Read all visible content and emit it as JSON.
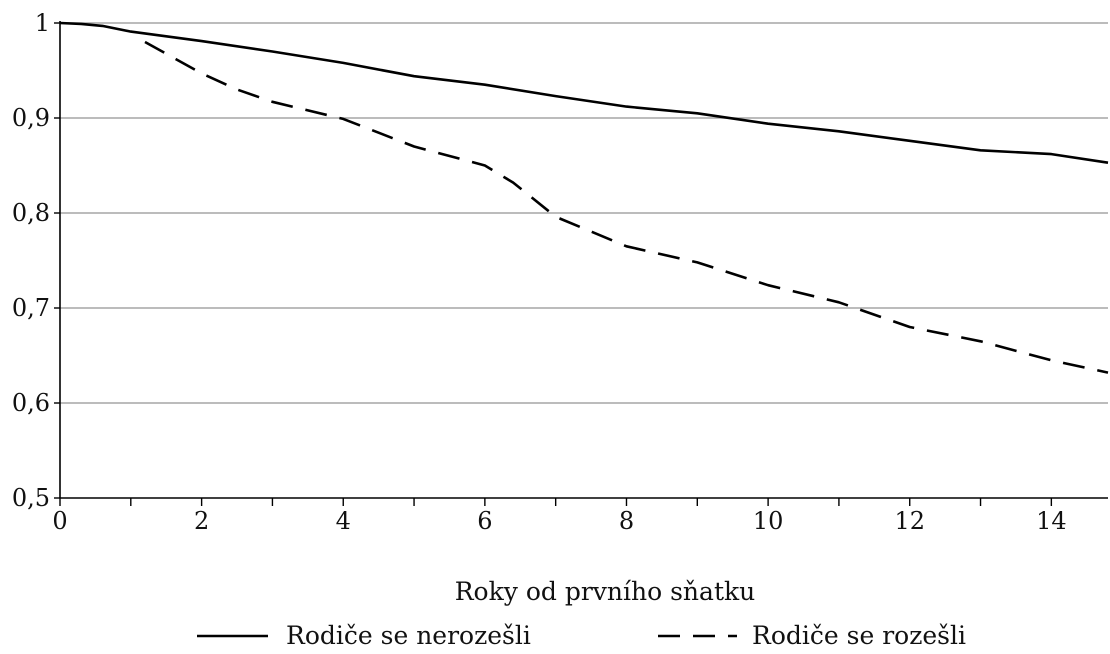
{
  "chart_data": {
    "type": "line",
    "title": "",
    "xlabel": "Roky od prvního sňatku",
    "ylabel": "",
    "xlim": [
      0,
      14.8
    ],
    "ylim": [
      0.5,
      1.0
    ],
    "x_ticks": [
      0,
      2,
      4,
      6,
      8,
      10,
      12,
      14
    ],
    "x_tick_labels": [
      "0",
      "2",
      "4",
      "6",
      "8",
      "10",
      "12",
      "14"
    ],
    "y_ticks": [
      0.5,
      0.6,
      0.7,
      0.8,
      0.9,
      1.0
    ],
    "y_tick_labels": [
      "0,5",
      "0,6",
      "0,7",
      "0,8",
      "0,9",
      "1"
    ],
    "grid": "horizontal",
    "legend_position": "bottom",
    "series": [
      {
        "name": "Rodiče se nerozešli",
        "style": "solid",
        "color": "#000000",
        "x": [
          0,
          0.3,
          0.6,
          1,
          2,
          3,
          4,
          5,
          6,
          7,
          8,
          9,
          10,
          11,
          12,
          13,
          14,
          14.8
        ],
        "y": [
          1.0,
          0.999,
          0.997,
          0.991,
          0.981,
          0.97,
          0.958,
          0.944,
          0.935,
          0.923,
          0.912,
          0.905,
          0.894,
          0.886,
          0.876,
          0.866,
          0.862,
          0.853
        ]
      },
      {
        "name": "Rodiče se rozešli",
        "style": "dashed",
        "color": "#000000",
        "x": [
          1.2,
          2,
          2.5,
          3,
          4,
          5,
          6,
          6.4,
          7,
          8,
          9,
          10,
          11,
          12,
          13,
          14,
          14.8
        ],
        "y": [
          0.98,
          0.947,
          0.93,
          0.917,
          0.899,
          0.87,
          0.85,
          0.832,
          0.796,
          0.765,
          0.748,
          0.724,
          0.706,
          0.68,
          0.665,
          0.645,
          0.632
        ]
      }
    ]
  }
}
